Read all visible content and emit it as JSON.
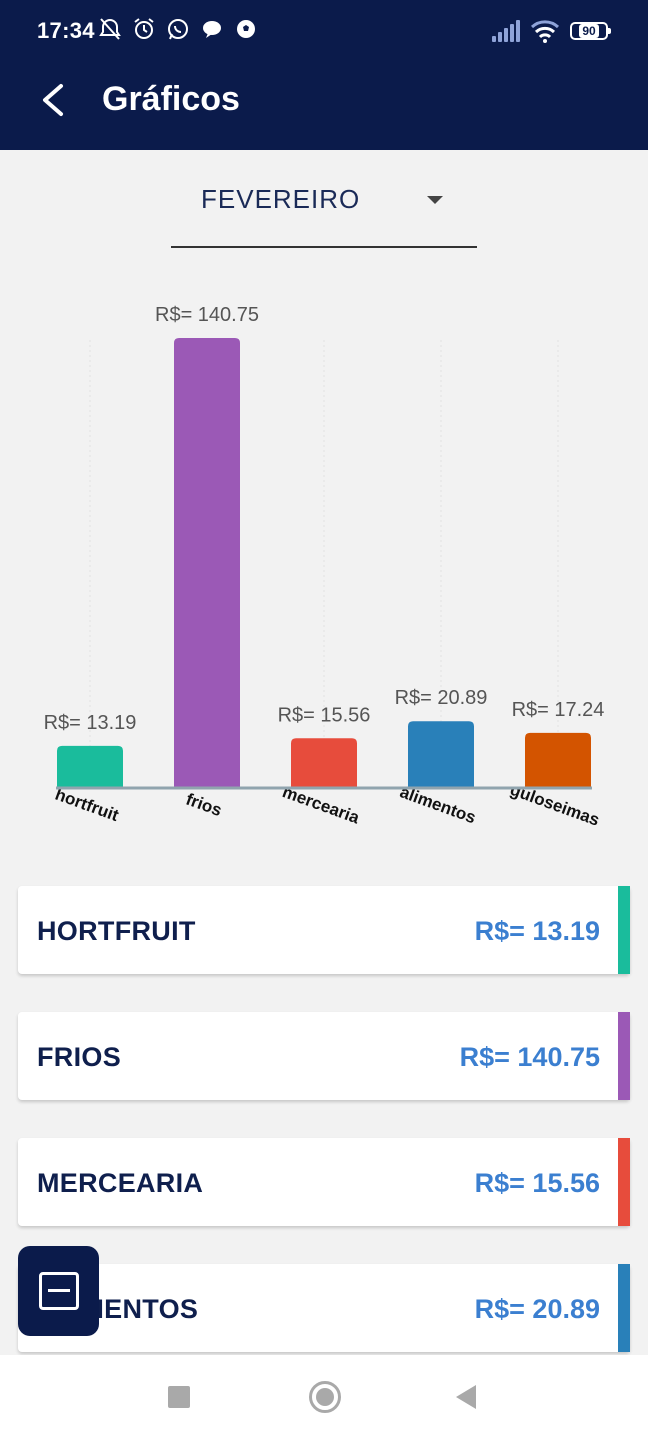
{
  "status_bar": {
    "time": "17:34",
    "icons": [
      "alarm-off-icon",
      "alarm-icon",
      "whatsapp-icon",
      "chat-icon",
      "soccer-ball-icon"
    ],
    "battery": "90"
  },
  "header": {
    "title": "Gráficos",
    "back_icon": "arrow-back-icon"
  },
  "month_selector": {
    "value": "FEVEREIRO"
  },
  "chart_data": {
    "type": "bar",
    "categories": [
      "hortfruit",
      "frios",
      "mercearia",
      "alimentos",
      "guloseimas"
    ],
    "values": [
      13.19,
      140.75,
      15.56,
      20.89,
      17.24
    ],
    "value_labels": [
      "R$= 13.19",
      "R$= 140.75",
      "R$= 15.56",
      "R$= 20.89",
      "R$= 17.24"
    ],
    "colors": [
      "#1abc9c",
      "#9b59b6",
      "#e74c3c",
      "#2980b9",
      "#d35400"
    ],
    "ylim": [
      0,
      140.75
    ],
    "grid": true
  },
  "categories": [
    {
      "name": "HORTFRUIT",
      "value": "R$= 13.19",
      "color": "#1abc9c"
    },
    {
      "name": "FRIOS",
      "value": "R$= 140.75",
      "color": "#9b59b6"
    },
    {
      "name": "MERCEARIA",
      "value": "R$= 15.56",
      "color": "#e74c3c"
    },
    {
      "name": "ALIMENTOS",
      "value": "R$= 20.89",
      "color": "#2980b9"
    }
  ],
  "fab": {
    "icon": "minus-square-icon"
  },
  "nav": {
    "recent_icon": "square-icon",
    "home_icon": "circle-icon",
    "back_icon": "triangle-back-icon"
  }
}
